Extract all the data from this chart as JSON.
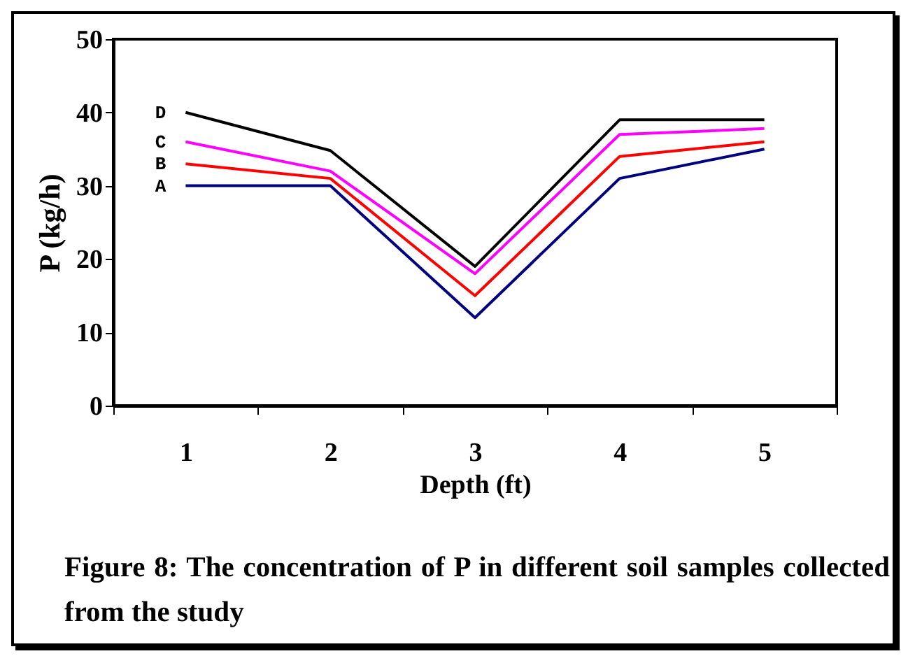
{
  "chart_data": {
    "type": "line",
    "categories": [
      "1",
      "2",
      "3",
      "4",
      "5"
    ],
    "xlabel": "Depth (ft)",
    "ylabel": "P (kg/h)",
    "ylim": [
      0,
      50
    ],
    "yticks": [
      0,
      10,
      20,
      30,
      40,
      50
    ],
    "series": [
      {
        "name": "D",
        "color": "#000000",
        "values": [
          40,
          34.8,
          19,
          39,
          39
        ]
      },
      {
        "name": "C",
        "color": "#ff00ff",
        "values": [
          36,
          32,
          18,
          37,
          37.8
        ]
      },
      {
        "name": "B",
        "color": "#ff0000",
        "values": [
          33,
          31,
          15,
          34,
          36
        ]
      },
      {
        "name": "A",
        "color": "#000080",
        "values": [
          30,
          30,
          12,
          31,
          35
        ]
      }
    ],
    "grid": false,
    "legend": false,
    "marker": "none",
    "line_style": "solid",
    "annotations": [
      "Figure 8: The concentration of P in different soil samples collected from the study"
    ]
  }
}
